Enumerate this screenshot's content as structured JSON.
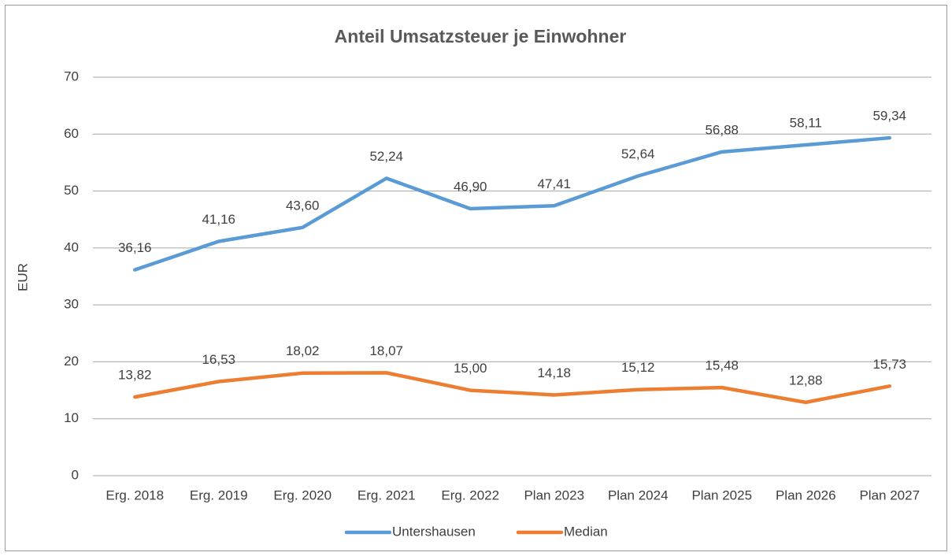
{
  "chart_data": {
    "type": "line",
    "title": "Anteil Umsatzsteuer je Einwohner",
    "y_label": "EUR",
    "categories": [
      "Erg. 2018",
      "Erg. 2019",
      "Erg. 2020",
      "Erg. 2021",
      "Erg. 2022",
      "Plan 2023",
      "Plan 2024",
      "Plan 2025",
      "Plan 2026",
      "Plan 2027"
    ],
    "series": [
      {
        "name": "Untershausen",
        "color": "#5b9bd5",
        "values": [
          36.16,
          41.16,
          43.6,
          52.24,
          46.9,
          47.41,
          52.64,
          56.88,
          58.11,
          59.34
        ],
        "value_labels": [
          "36,16",
          "41,16",
          "43,60",
          "52,24",
          "46,90",
          "47,41",
          "52,64",
          "56,88",
          "58,11",
          "59,34"
        ]
      },
      {
        "name": "Median",
        "color": "#ed7d31",
        "values": [
          13.82,
          16.53,
          18.02,
          18.07,
          15.0,
          14.18,
          15.12,
          15.48,
          12.88,
          15.73
        ],
        "value_labels": [
          "13,82",
          "16,53",
          "18,02",
          "18,07",
          "15,00",
          "14,18",
          "15,12",
          "15,48",
          "12,88",
          "15,73"
        ]
      }
    ],
    "ylim": [
      0,
      70
    ],
    "yticks": [
      0,
      10,
      20,
      30,
      40,
      50,
      60,
      70
    ],
    "grid": true,
    "legend": "bottom"
  }
}
